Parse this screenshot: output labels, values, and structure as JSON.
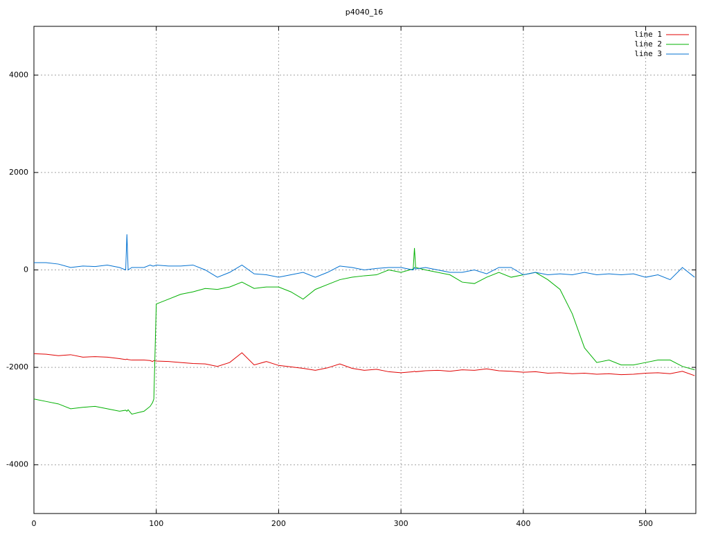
{
  "chart_data": {
    "type": "line",
    "title": "p4040_16",
    "x": [
      0,
      10,
      20,
      30,
      40,
      50,
      60,
      70,
      75,
      76,
      77,
      80,
      90,
      95,
      97,
      98,
      100,
      110,
      120,
      130,
      140,
      150,
      160,
      170,
      180,
      190,
      200,
      210,
      220,
      230,
      240,
      250,
      260,
      270,
      280,
      290,
      300,
      310,
      311,
      312,
      320,
      330,
      340,
      350,
      360,
      370,
      380,
      390,
      400,
      410,
      420,
      430,
      440,
      450,
      460,
      470,
      480,
      490,
      500,
      510,
      520,
      530,
      540
    ],
    "series": [
      {
        "name": "line 1",
        "color": "#e00000",
        "values": [
          -1720,
          -1730,
          -1760,
          -1740,
          -1790,
          -1780,
          -1790,
          -1820,
          -1840,
          -1830,
          -1840,
          -1850,
          -1850,
          -1860,
          -1880,
          -1860,
          -1870,
          -1880,
          -1900,
          -1920,
          -1930,
          -1980,
          -1900,
          -1700,
          -1950,
          -1880,
          -1960,
          -1990,
          -2020,
          -2060,
          -2010,
          -1930,
          -2020,
          -2060,
          -2040,
          -2090,
          -2110,
          -2090,
          -2080,
          -2090,
          -2070,
          -2060,
          -2080,
          -2050,
          -2060,
          -2030,
          -2070,
          -2080,
          -2100,
          -2090,
          -2120,
          -2110,
          -2130,
          -2120,
          -2140,
          -2130,
          -2150,
          -2140,
          -2120,
          -2110,
          -2130,
          -2080,
          -2170
        ]
      },
      {
        "name": "line 2",
        "color": "#00b000",
        "values": [
          -2650,
          -2700,
          -2750,
          -2850,
          -2820,
          -2800,
          -2850,
          -2900,
          -2880,
          -2900,
          -2870,
          -2960,
          -2900,
          -2800,
          -2720,
          -2650,
          -700,
          -600,
          -500,
          -450,
          -380,
          -400,
          -350,
          -250,
          -380,
          -350,
          -350,
          -450,
          -600,
          -400,
          -300,
          -200,
          -150,
          -120,
          -100,
          0,
          -50,
          20,
          450,
          50,
          0,
          -50,
          -100,
          -250,
          -280,
          -150,
          -50,
          -150,
          -100,
          -50,
          -200,
          -400,
          -900,
          -1600,
          -1900,
          -1850,
          -1950,
          -1950,
          -1900,
          -1850,
          -1850,
          -1980,
          -2050
        ]
      },
      {
        "name": "line 3",
        "color": "#0070d0",
        "values": [
          150,
          150,
          120,
          50,
          80,
          70,
          100,
          50,
          0,
          730,
          0,
          50,
          50,
          100,
          80,
          80,
          100,
          80,
          80,
          100,
          0,
          -150,
          -50,
          100,
          -80,
          -100,
          -150,
          -100,
          -50,
          -150,
          -50,
          80,
          50,
          0,
          30,
          50,
          50,
          0,
          50,
          20,
          50,
          0,
          -50,
          -50,
          0,
          -80,
          50,
          50,
          -100,
          -50,
          -100,
          -80,
          -100,
          -50,
          -100,
          -80,
          -100,
          -80,
          -150,
          -100,
          -200,
          50,
          -150
        ]
      }
    ],
    "xlim": [
      0,
      541
    ],
    "ylim": [
      -5000,
      5000
    ],
    "xticks": [
      0,
      100,
      200,
      300,
      400,
      500
    ],
    "yticks": [
      -4000,
      -2000,
      0,
      2000,
      4000
    ],
    "grid": true,
    "legend": "top-right"
  }
}
